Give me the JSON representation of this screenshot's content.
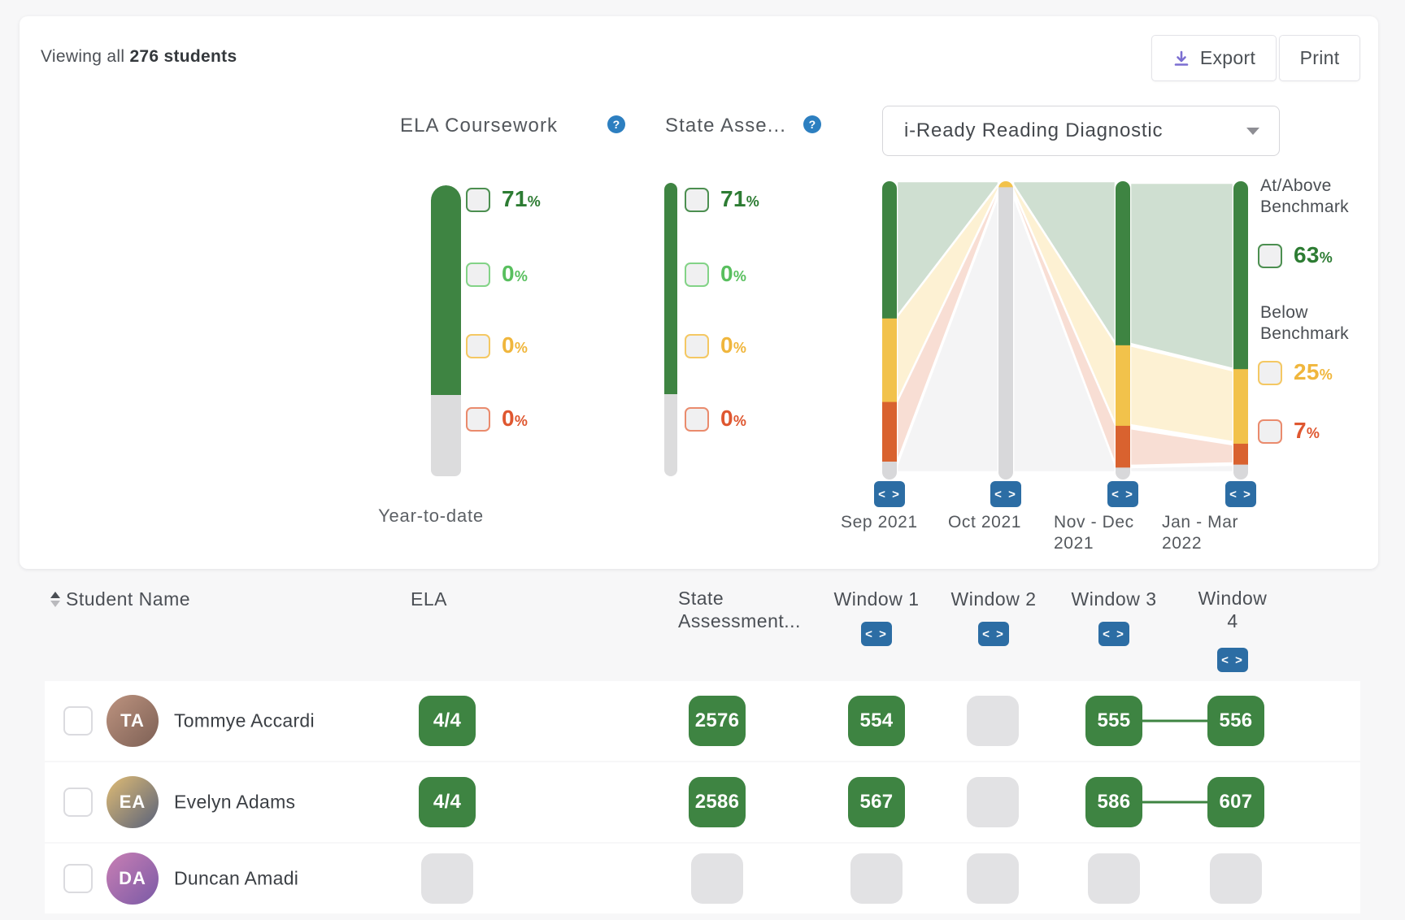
{
  "ui": {
    "pct": "%"
  },
  "header": {
    "viewing_prefix": "Viewing all ",
    "viewing_count": "276 students",
    "export_label": "Export",
    "print_label": "Print"
  },
  "ela_section": {
    "title": "ELA Coursework",
    "footer_label": "Year-to-date",
    "legend": [
      {
        "value": "71"
      },
      {
        "value": "0"
      },
      {
        "value": "0"
      },
      {
        "value": "0"
      }
    ]
  },
  "state_section": {
    "title": "State Asse...",
    "legend": [
      {
        "value": "71"
      },
      {
        "value": "0"
      },
      {
        "value": "0"
      },
      {
        "value": "0"
      }
    ]
  },
  "diagnostic_section": {
    "dropdown_value": "i-Ready Reading Diagnostic",
    "windows": [
      "Sep 2021",
      "Oct 2021",
      "Nov - Dec 2021",
      "Jan - Mar 2022"
    ],
    "legend": {
      "above_label": "At/Above Benchmark",
      "above_value": "63",
      "below_label": "Below Benchmark",
      "mid_value": "25",
      "low_value": "7"
    }
  },
  "chart_data": [
    {
      "type": "bar",
      "title": "ELA Coursework",
      "categories": [
        "Year-to-date"
      ],
      "series": [
        {
          "name": "dark green",
          "values": [
            71
          ]
        },
        {
          "name": "light green",
          "values": [
            0
          ]
        },
        {
          "name": "yellow",
          "values": [
            0
          ]
        },
        {
          "name": "red",
          "values": [
            0
          ]
        },
        {
          "name": "no data (gray)",
          "values": [
            29
          ]
        }
      ],
      "ylim": [
        0,
        100
      ],
      "unit": "%"
    },
    {
      "type": "bar",
      "title": "State Asse...",
      "categories": [
        "Year-to-date"
      ],
      "series": [
        {
          "name": "dark green",
          "values": [
            71
          ]
        },
        {
          "name": "light green",
          "values": [
            0
          ]
        },
        {
          "name": "yellow",
          "values": [
            0
          ]
        },
        {
          "name": "red",
          "values": [
            0
          ]
        },
        {
          "name": "no data (gray)",
          "values": [
            29
          ]
        }
      ],
      "ylim": [
        0,
        100
      ],
      "unit": "%"
    },
    {
      "type": "area",
      "title": "i-Ready Reading Diagnostic",
      "categories": [
        "Sep 2021",
        "Oct 2021",
        "Nov - Dec 2021",
        "Jan - Mar 2022"
      ],
      "series": [
        {
          "name": "At/Above Benchmark (green)",
          "values": [
            46,
            0,
            55,
            63
          ]
        },
        {
          "name": "Below Benchmark (yellow)",
          "values": [
            28,
            2,
            27,
            25
          ]
        },
        {
          "name": "Below Benchmark (red)",
          "values": [
            20,
            0,
            14,
            7
          ]
        },
        {
          "name": "No data (gray)",
          "values": [
            6,
            98,
            4,
            5
          ]
        }
      ],
      "legend_position": "right",
      "latest_window_summary": {
        "at_above": "63%",
        "below_mid": "25%",
        "below_low": "7%"
      },
      "unit": "%"
    }
  ],
  "table": {
    "headers": {
      "student": "Student Name",
      "ela": "ELA",
      "state": "State Assessment...",
      "windows": [
        "Window 1",
        "Window 2",
        "Window 3",
        "Window 4"
      ]
    },
    "rows": [
      {
        "name": "Tommye Accardi",
        "ela": "4/4",
        "state": "2576",
        "windows": [
          "554",
          null,
          "555",
          "556"
        ],
        "w3_w4_connected": true
      },
      {
        "name": "Evelyn Adams",
        "ela": "4/4",
        "state": "2586",
        "windows": [
          "567",
          null,
          "586",
          "607"
        ],
        "w3_w4_connected": true
      },
      {
        "name": "Duncan Amadi",
        "ela": null,
        "state": null,
        "windows": [
          null,
          null,
          null,
          null
        ],
        "w3_w4_connected": false
      }
    ]
  }
}
